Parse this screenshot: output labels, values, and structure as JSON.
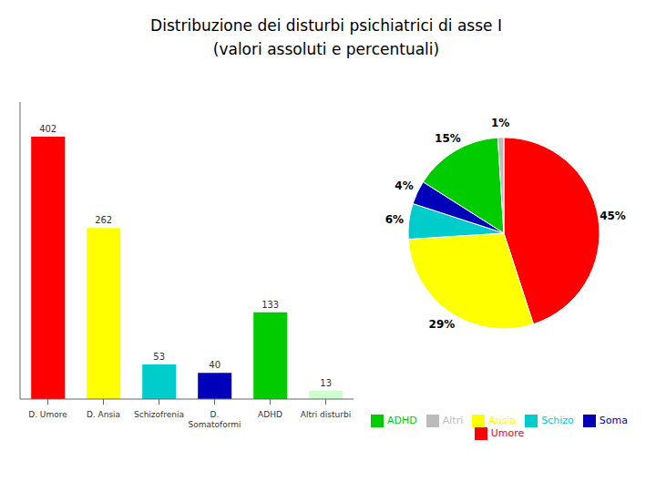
{
  "chart_data": [
    {
      "type": "bar",
      "title": "Distribuzione dei disturbi psichiatrici di asse I",
      "subtitle": "(valori assoluti e percentuali)",
      "categories": [
        "D. Umore",
        "D. Ansia",
        "Schizofrenia",
        "D.\nSomatoformi",
        "ADHD",
        "Altri disturbi"
      ],
      "values": [
        402,
        262,
        53,
        40,
        133,
        13
      ],
      "colors": [
        "#ff0000",
        "#ffff00",
        "#00cccc",
        "#0000bb",
        "#00cc00",
        "#ccffcc"
      ],
      "ylim": [
        0,
        455
      ],
      "tick_labels": "x",
      "data_labels": true,
      "grid": false
    },
    {
      "type": "pie",
      "categories": [
        "Umore",
        "Ansia",
        "Schizo",
        "Soma",
        "ADHD",
        "Altri"
      ],
      "values": [
        45,
        29,
        6,
        4,
        15,
        1
      ],
      "value_labels": [
        "45%",
        "29%",
        "6%",
        "4%",
        "15%",
        "1%"
      ],
      "colors": [
        "#ff0000",
        "#ffff00",
        "#00cccc",
        "#0000bb",
        "#00cc00",
        "#bbbbbb"
      ],
      "data_labels": true,
      "legend": "bottom"
    }
  ]
}
